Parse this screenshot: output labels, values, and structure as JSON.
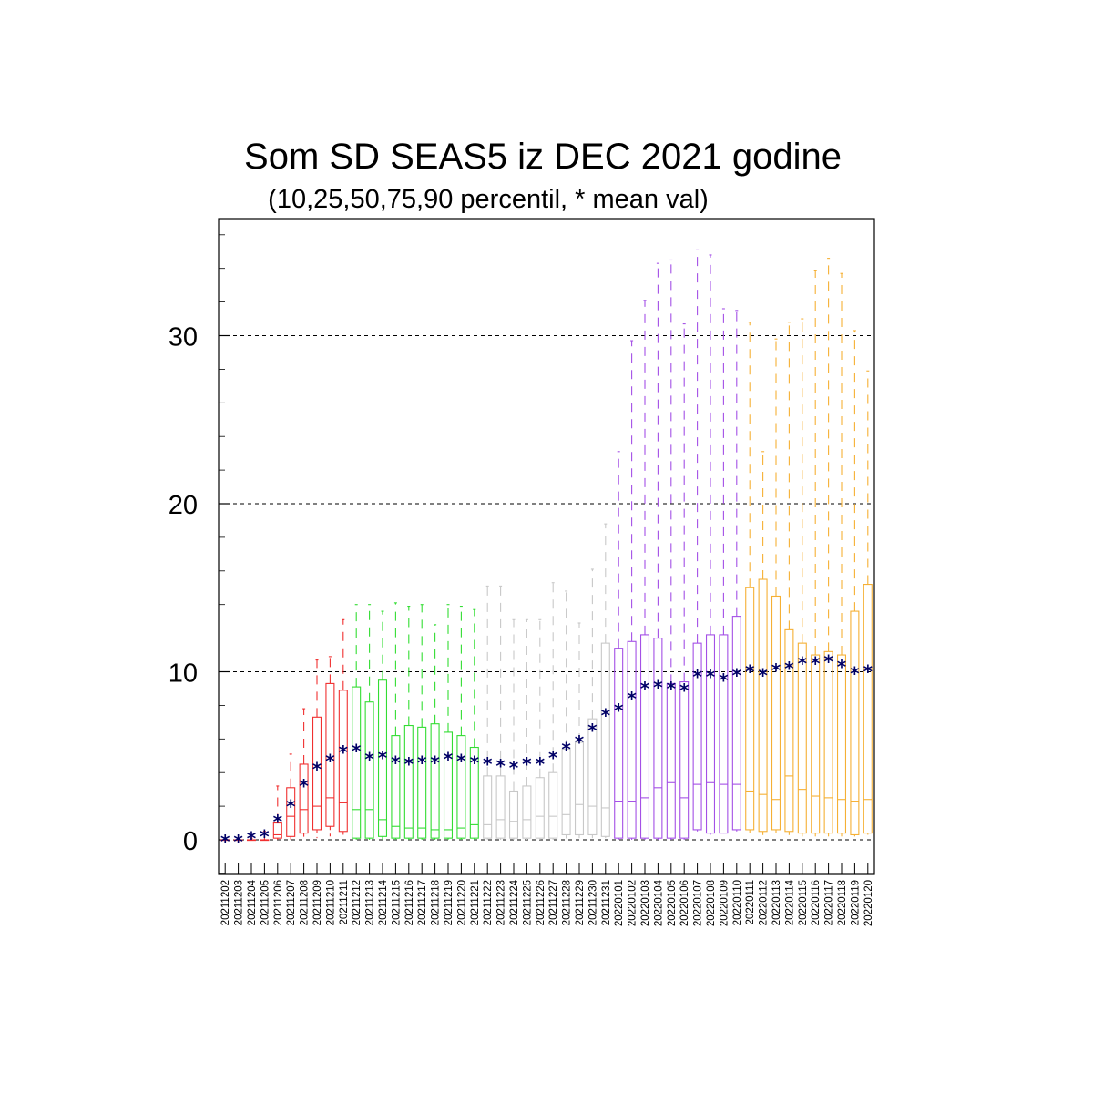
{
  "chart_data": {
    "type": "boxplot",
    "title": "Som SD SEAS5 iz DEC 2021 godine",
    "subtitle": "(10,25,50,75,90 percentil, * mean val)",
    "ylim": [
      -2,
      37
    ],
    "yticks": [
      0,
      10,
      20,
      30
    ],
    "grid": "horizontal dashed at major ticks",
    "colors": {
      "red": "#f03030",
      "green": "#33dd33",
      "grey": "#c8c8c8",
      "purple": "#a450e6",
      "orange": "#f5b035",
      "mean": "#000066"
    },
    "group_color_order": [
      "red",
      "green",
      "grey",
      "purple",
      "orange"
    ],
    "categories": [
      "20211202",
      "20211203",
      "20211204",
      "20211205",
      "20211206",
      "20211207",
      "20211208",
      "20211209",
      "20211210",
      "20211211",
      "20211212",
      "20211213",
      "20211214",
      "20211215",
      "20211216",
      "20211217",
      "20211218",
      "20211219",
      "20211220",
      "20211221",
      "20211222",
      "20211223",
      "20211224",
      "20211225",
      "20211226",
      "20211227",
      "20211228",
      "20211229",
      "20211230",
      "20211231",
      "20220101",
      "20220102",
      "20220103",
      "20220104",
      "20220105",
      "20220106",
      "20220107",
      "20220108",
      "20220109",
      "20220110",
      "20220111",
      "20220112",
      "20220113",
      "20220114",
      "20220115",
      "20220116",
      "20220117",
      "20220118",
      "20220119",
      "20220120"
    ],
    "p10": [
      0,
      0,
      0,
      0,
      0,
      0,
      0,
      0.1,
      0.2,
      0.3,
      0,
      0,
      0,
      0,
      0,
      0,
      0,
      0,
      0,
      0,
      0,
      0,
      0,
      0,
      0,
      0,
      0,
      0.1,
      0.1,
      0.1,
      0,
      0,
      0,
      0,
      0,
      0,
      0.5,
      0.3,
      0.4,
      0.5,
      0.3,
      0.2,
      0.2,
      0.2,
      0.2,
      0.2,
      0.2,
      0.2,
      0.2,
      0.3
    ],
    "p25": [
      0,
      0,
      0,
      0,
      0.1,
      0.2,
      0.4,
      0.6,
      0.8,
      0.5,
      0.1,
      0.1,
      0.2,
      0.1,
      0.1,
      0.1,
      0.1,
      0.1,
      0.1,
      0.1,
      0.1,
      0.1,
      0.1,
      0.1,
      0.1,
      0.1,
      0.3,
      0.3,
      0.3,
      0.2,
      0.1,
      0.1,
      0.1,
      0.1,
      0.1,
      0.1,
      0.6,
      0.4,
      0.4,
      0.6,
      0.6,
      0.5,
      0.6,
      0.5,
      0.4,
      0.4,
      0.4,
      0.4,
      0.3,
      0.4
    ],
    "p50": [
      0,
      0,
      0,
      0,
      0.3,
      1.4,
      1.8,
      2.0,
      2.5,
      2.2,
      1.8,
      1.8,
      1.2,
      0.8,
      0.7,
      0.7,
      0.6,
      0.6,
      0.7,
      0.9,
      0.9,
      1.2,
      1.1,
      1.2,
      1.4,
      1.4,
      1.5,
      2.1,
      2.0,
      1.9,
      2.3,
      2.3,
      2.5,
      3.1,
      3.4,
      2.5,
      3.3,
      3.4,
      3.3,
      3.3,
      2.9,
      2.7,
      2.4,
      3.8,
      3.0,
      2.6,
      2.5,
      2.4,
      2.3,
      2.4
    ],
    "p75": [
      0,
      0,
      0,
      0,
      1.0,
      3.1,
      4.5,
      7.3,
      9.3,
      8.9,
      9.1,
      8.2,
      9.5,
      6.2,
      6.8,
      6.7,
      6.9,
      6.4,
      6.2,
      5.5,
      3.8,
      3.8,
      2.9,
      3.2,
      3.7,
      4.0,
      5.4,
      5.8,
      7.2,
      11.7,
      11.4,
      11.8,
      12.2,
      12.0,
      9.3,
      9.4,
      11.7,
      12.2,
      12.2,
      13.3,
      15.0,
      15.5,
      14.5,
      12.5,
      11.7,
      11.0,
      11.2,
      11.0,
      13.6,
      15.2
    ],
    "p90": [
      0,
      0,
      0.1,
      0.5,
      3.2,
      5.1,
      7.8,
      10.7,
      10.9,
      13.1,
      14.0,
      14.0,
      13.6,
      14.1,
      13.9,
      14.0,
      12.8,
      14.0,
      13.9,
      13.7,
      15.1,
      15.1,
      13.1,
      13.1,
      13.1,
      15.3,
      14.8,
      12.9,
      16.1,
      18.8,
      23.1,
      29.7,
      32.1,
      34.3,
      34.5,
      30.7,
      35.1,
      34.8,
      31.6,
      31.5,
      30.8,
      23.1,
      29.8,
      30.8,
      31.0,
      33.9,
      34.6,
      33.7,
      30.3,
      27.9
    ],
    "mean": [
      0,
      0,
      0.2,
      0.3,
      1.2,
      2.1,
      3.3,
      4.3,
      4.8,
      5.3,
      5.4,
      4.9,
      5.0,
      4.7,
      4.6,
      4.7,
      4.7,
      4.9,
      4.8,
      4.7,
      4.6,
      4.5,
      4.4,
      4.6,
      4.6,
      5.0,
      5.5,
      5.9,
      6.6,
      7.5,
      7.8,
      8.5,
      9.1,
      9.2,
      9.1,
      9.0,
      9.8,
      9.8,
      9.6,
      9.9,
      10.1,
      9.9,
      10.2,
      10.3,
      10.6,
      10.6,
      10.7,
      10.4,
      10.0,
      10.1
    ]
  }
}
